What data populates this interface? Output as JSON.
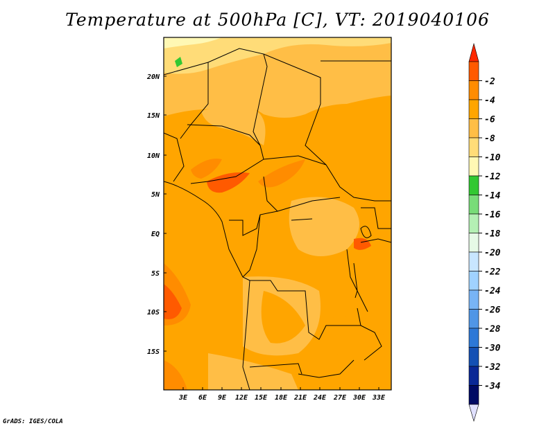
{
  "title": "Temperature at 500hPa [C], VT: 2019040106",
  "credit": "GrADS: IGES/COLA",
  "map": {
    "lat_labels": [
      "20N",
      "15N",
      "10N",
      "5N",
      "EQ",
      "5S",
      "10S",
      "15S"
    ],
    "lon_labels": [
      "3E",
      "6E",
      "9E",
      "12E",
      "15E",
      "18E",
      "21E",
      "24E",
      "27E",
      "30E",
      "33E"
    ]
  },
  "colorbar": {
    "labels": [
      "-2",
      "-4",
      "-6",
      "-8",
      "-10",
      "-12",
      "-14",
      "-16",
      "-18",
      "-20",
      "-22",
      "-24",
      "-26",
      "-28",
      "-30",
      "-32",
      "-34"
    ],
    "colors": [
      "#ff5a00",
      "#ff8c00",
      "#ffa500",
      "#ffbe46",
      "#ffdc78",
      "#fff8b4",
      "#32c832",
      "#78dc78",
      "#b4f0b4",
      "#e6fae6",
      "#c8e6ff",
      "#a0d2ff",
      "#78b4f5",
      "#5096e6",
      "#2d78d7",
      "#1450b4",
      "#0a2896",
      "#000a64"
    ],
    "top_arrow_color": "#ff2800",
    "bottom_arrow_color": "#e0e0ff"
  }
}
